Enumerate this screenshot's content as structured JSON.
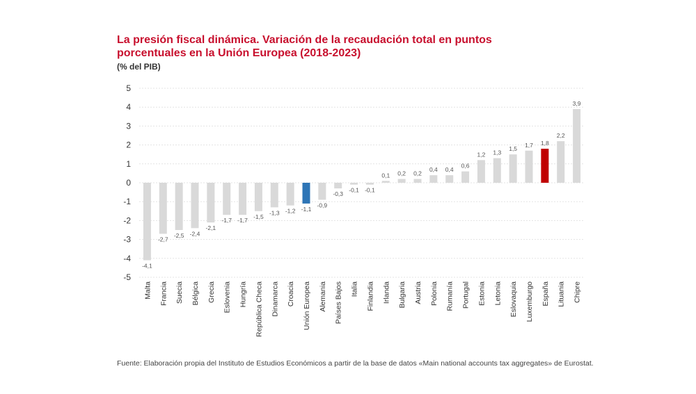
{
  "chart_data": {
    "type": "bar",
    "title": "La presión fiscal dinámica. Variación de la recaudación total en puntos porcentuales en la Unión Europea (2018-2023)",
    "ylabel": "(% del PIB)",
    "xlabel": "",
    "ylim": [
      -5,
      5
    ],
    "yticks": [
      "5",
      "4",
      "3",
      "2",
      "1",
      "0",
      "-1",
      "-2",
      "-3",
      "-4",
      "-5"
    ],
    "grid": true,
    "categories": [
      "Malta",
      "Francia",
      "Suecia",
      "Bélgica",
      "Grecia",
      "Eslovenia",
      "Hungría",
      "República Checa",
      "Dinamarca",
      "Croacia",
      "Unión Europea",
      "Alemania",
      "Países Bajos",
      "Italia",
      "Finlandia",
      "Irlanda",
      "Bulgaria",
      "Austria",
      "Polonia",
      "Rumanía",
      "Portugal",
      "Estonia",
      "Letonia",
      "Eslovaquia",
      "Luxemburgo",
      "España",
      "Lituania",
      "Chipre"
    ],
    "values": [
      -4.1,
      -2.7,
      -2.5,
      -2.4,
      -2.1,
      -1.7,
      -1.7,
      -1.5,
      -1.3,
      -1.2,
      -1.1,
      -0.9,
      -0.3,
      -0.1,
      -0.1,
      0.1,
      0.2,
      0.2,
      0.4,
      0.4,
      0.6,
      1.2,
      1.3,
      1.5,
      1.7,
      1.8,
      2.2,
      3.9
    ],
    "value_labels": [
      "-4,1",
      "-2,7",
      "-2,5",
      "-2,4",
      "-2,1",
      "-1,7",
      "-1,7",
      "-1,5",
      "-1,3",
      "-1,2",
      "-1,1",
      "-0,9",
      "-0,3",
      "-0,1",
      "-0,1",
      "0,1",
      "0,2",
      "0,2",
      "0,4",
      "0,4",
      "0,6",
      "1,2",
      "1,3",
      "1,5",
      "1,7",
      "1,8",
      "2,2",
      "3,9"
    ],
    "colors": {
      "default": "#d9d9d9",
      "Unión Europea": "#2e75b6",
      "España": "#c00000"
    }
  },
  "source": "Fuente: Elaboración propia del Instituto de Estudios Económicos a partir de la base de datos «Main national accounts tax aggregates» de Eurostat."
}
